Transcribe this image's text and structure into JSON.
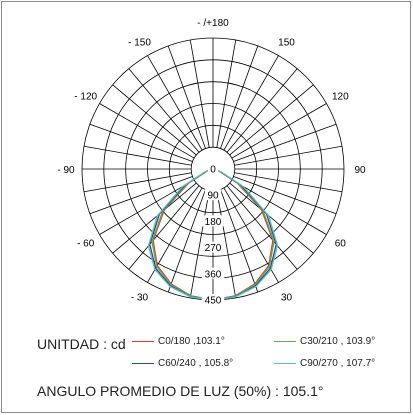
{
  "chart_data": {
    "type": "polar",
    "unit_label": "UNITDAD : cd",
    "angle_labels": [
      {
        "deg": 180,
        "text": "- /+180"
      },
      {
        "deg": -150,
        "text": "- 150"
      },
      {
        "deg": 150,
        "text": "150"
      },
      {
        "deg": -120,
        "text": "- 120"
      },
      {
        "deg": 120,
        "text": "120"
      },
      {
        "deg": -90,
        "text": "- 90"
      },
      {
        "deg": 90,
        "text": "90"
      },
      {
        "deg": -60,
        "text": "- 60"
      },
      {
        "deg": 60,
        "text": "60"
      },
      {
        "deg": -30,
        "text": "- 30"
      },
      {
        "deg": 30,
        "text": "30"
      }
    ],
    "radial_ticks": [
      0,
      90,
      180,
      270,
      360,
      450
    ],
    "r_max": 450,
    "angle_step_deg": 10,
    "series": [
      {
        "name": "C0/180 ,103.1°",
        "color": "#d9412b",
        "angles": [
          0,
          10,
          20,
          30,
          40,
          50,
          60,
          70,
          80,
          90
        ],
        "values": [
          450,
          442,
          420,
          383,
          320,
          218,
          96,
          22,
          6,
          0
        ]
      },
      {
        "name": "C30/210 , 103.9°",
        "color": "#6aa84f",
        "angles": [
          0,
          10,
          20,
          30,
          40,
          50,
          60,
          70,
          80,
          90
        ],
        "values": [
          450,
          443,
          423,
          387,
          326,
          226,
          102,
          24,
          6,
          0
        ]
      },
      {
        "name": "C60/240 , 105.8°",
        "color": "#2b4a8c",
        "angles": [
          0,
          10,
          20,
          30,
          40,
          50,
          60,
          70,
          80,
          90
        ],
        "values": [
          450,
          445,
          427,
          394,
          338,
          240,
          112,
          28,
          7,
          0
        ]
      },
      {
        "name": "C90/270 , 107.7°",
        "color": "#5bbfc4",
        "angles": [
          0,
          10,
          20,
          30,
          40,
          50,
          60,
          70,
          80,
          90
        ],
        "values": [
          450,
          446,
          430,
          399,
          345,
          250,
          120,
          30,
          8,
          0
        ]
      }
    ],
    "summary": "ANGULO PROMEDIO DE LUZ (50%) : 105.1°"
  }
}
